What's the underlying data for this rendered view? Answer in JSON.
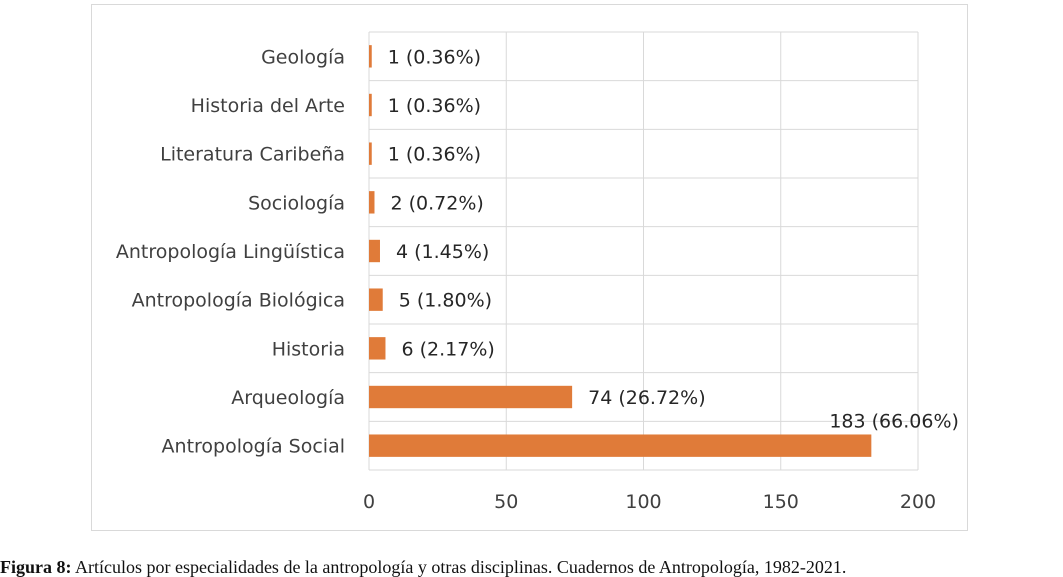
{
  "chart_data": {
    "type": "bar",
    "orientation": "horizontal",
    "categories": [
      "Geología",
      "Historia del Arte",
      "Literatura Caribeña",
      "Sociología",
      "Antropología Lingüística",
      "Antropología Biológica",
      "Historia",
      "Arqueología",
      "Antropología Social"
    ],
    "values": [
      1,
      1,
      1,
      2,
      4,
      5,
      6,
      74,
      183
    ],
    "data_labels": [
      "1 (0.36%)",
      "1 (0.36%)",
      "1 (0.36%)",
      "2 (0.72%)",
      "4 (1.45%)",
      "5 (1.80%)",
      "6 (2.17%)",
      "74 (26.72%)",
      "183 (66.06%)"
    ],
    "xlim": [
      0,
      200
    ],
    "xticks": [
      0,
      50,
      100,
      150,
      200
    ],
    "grid": true,
    "legend": "none",
    "bar_color": "#e07b39"
  },
  "caption": {
    "label": "Figura 8:",
    "text": " Artículos por especialidades de la antropología y otras disciplinas. Cuadernos de Antropología, 1982-2021."
  }
}
